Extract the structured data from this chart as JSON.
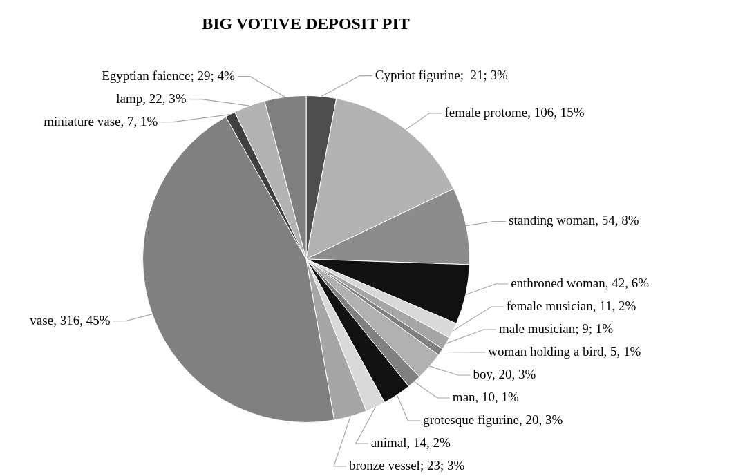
{
  "chart_data": {
    "type": "pie",
    "title": "BIG VOTIVE DEPOSIT PIT",
    "categories": [
      "Cypriot figurine",
      "female protome",
      "standing woman",
      "enthroned woman",
      "female musician",
      "male musician",
      "woman holding a bird",
      "boy",
      "man",
      "grotesque figurine",
      "animal",
      "bronze vessel",
      "vase",
      "miniature vase",
      "lamp",
      "Egyptian faience"
    ],
    "values": [
      21,
      106,
      54,
      42,
      11,
      9,
      5,
      20,
      10,
      20,
      14,
      23,
      316,
      7,
      22,
      29
    ],
    "value_labels": [
      ";  21; 3%",
      ", 106, 15%",
      ", 54, 8%",
      ", 42, 6%",
      ", 11, 2%",
      "; 9; 1%",
      ", 5, 1%",
      ", 20, 3%",
      ", 10, 1%",
      ", 20, 3%",
      ", 14, 2%",
      "; 23; 3%",
      ", 316, 45%",
      ", 7, 1%",
      ", 22, 3%",
      "; 29; 4%"
    ],
    "colors": [
      "#4d4d4d",
      "#b3b3b3",
      "#8c8c8c",
      "#111111",
      "#d9d9d9",
      "#a6a6a6",
      "#7f7f7f",
      "#b0b0b0",
      "#808080",
      "#111111",
      "#d9d9d9",
      "#a6a6a6",
      "#808080",
      "#404040",
      "#b3b3b3",
      "#808080"
    ],
    "legend": false
  }
}
